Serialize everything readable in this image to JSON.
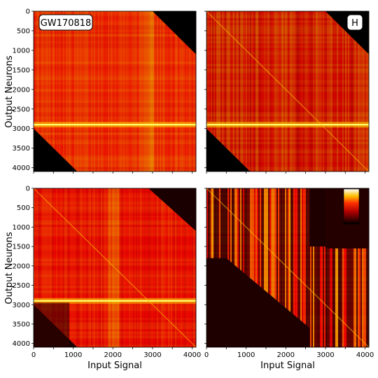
{
  "chart_data": [
    {
      "type": "heatmap",
      "panel": "top-left",
      "annotation": "GW170818",
      "ylabel": "Output Neurons",
      "xlabel": "",
      "x_range": [
        0,
        4096
      ],
      "y_range": [
        0,
        4096
      ],
      "y_ticks": [
        0,
        500,
        1000,
        1500,
        2000,
        2500,
        3000,
        3500,
        4000
      ],
      "x_ticks": [],
      "colormap": "hot",
      "features": {
        "masked_top_right_corner": true,
        "masked_bottom_left_corner": true,
        "bright_row": 2900,
        "bright_column": 2900
      }
    },
    {
      "type": "heatmap",
      "panel": "top-right",
      "annotation": "H",
      "ylabel": "",
      "xlabel": "",
      "x_range": [
        0,
        4096
      ],
      "y_range": [
        0,
        4096
      ],
      "y_ticks": [],
      "x_ticks": [],
      "colormap": "hot",
      "features": {
        "masked_top_right_corner": true,
        "masked_bottom_left_corner": true,
        "bright_row": 2900,
        "vertical_streaks": true
      }
    },
    {
      "type": "heatmap",
      "panel": "bottom-left",
      "annotation": "",
      "ylabel": "Output Neurons",
      "xlabel": "Input Signal",
      "x_range": [
        0,
        4096
      ],
      "y_range": [
        0,
        4096
      ],
      "y_ticks": [
        0,
        500,
        1000,
        1500,
        2000,
        2500,
        3000,
        3500,
        4000
      ],
      "x_ticks": [
        0,
        1000,
        2000,
        3000,
        4000
      ],
      "colormap": "hot",
      "features": {
        "dark_lower_left_triangle": true,
        "bright_row": 2900,
        "bright_column": 2000
      }
    },
    {
      "type": "heatmap",
      "panel": "bottom-right",
      "annotation": "",
      "ylabel": "",
      "xlabel": "Input Signal",
      "x_range": [
        0,
        4096
      ],
      "y_range": [
        0,
        4096
      ],
      "y_ticks": [],
      "x_ticks": [
        0,
        1000,
        2000,
        3000,
        4000
      ],
      "colormap": "hot",
      "features": {
        "dark_lower_left_block": true,
        "dark_upper_right_block": true,
        "vertical_streaks": true,
        "colorbar_inset": "top-right"
      }
    }
  ]
}
